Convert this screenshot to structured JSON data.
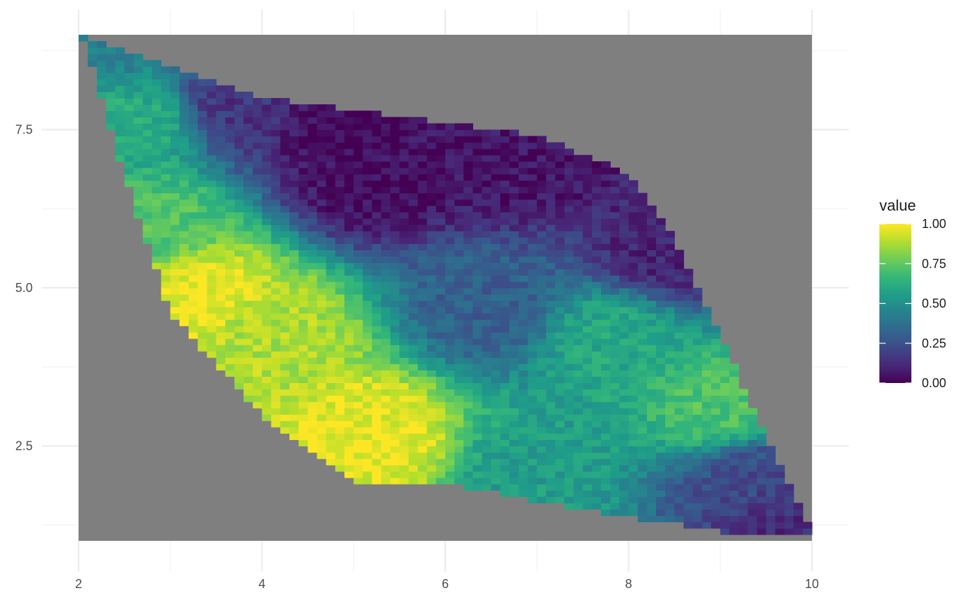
{
  "chart_data": {
    "type": "heatmap",
    "title": "",
    "xlabel": "",
    "ylabel": "",
    "xlim": [
      2,
      10
    ],
    "ylim": [
      1,
      9
    ],
    "x_ticks": [
      2,
      4,
      6,
      8,
      10
    ],
    "x_tick_labels": [
      "2",
      "4",
      "6",
      "8",
      "10"
    ],
    "y_ticks": [
      2.5,
      5.0,
      7.5
    ],
    "y_tick_labels": [
      "2.5",
      "5.0",
      "7.5"
    ],
    "grid": true,
    "panel_fill": "#7f7f7f",
    "colormap": "viridis",
    "legend": {
      "title": "value",
      "position": "right",
      "range": [
        0,
        1
      ],
      "breaks": [
        0,
        0.25,
        0.5,
        0.75,
        1
      ],
      "labels": [
        "0.00",
        "0.25",
        "0.50",
        "0.75",
        "1.00"
      ]
    },
    "region": {
      "description_points": [
        [
          2,
          9
        ],
        [
          4,
          8
        ],
        [
          7,
          7.4
        ],
        [
          8,
          6.8
        ],
        [
          8.5,
          5.8
        ],
        [
          9.2,
          3.6
        ],
        [
          10,
          1.1
        ],
        [
          9.2,
          1.1
        ],
        [
          7.5,
          1.5
        ],
        [
          6,
          1.9
        ],
        [
          5,
          1.9
        ],
        [
          4,
          3
        ],
        [
          3,
          4.6
        ],
        [
          2.5,
          6.8
        ],
        [
          2.1,
          8.7
        ]
      ]
    },
    "hotspots": [
      {
        "x": 3.3,
        "y": 4.9,
        "value": 0.98
      },
      {
        "x": 5.2,
        "y": 2.7,
        "value": 0.97
      },
      {
        "x": 4.1,
        "y": 4.3,
        "value": 0.88
      },
      {
        "x": 2.8,
        "y": 6.0,
        "value": 0.72
      },
      {
        "x": 2.6,
        "y": 7.6,
        "value": 0.62
      },
      {
        "x": 9.0,
        "y": 3.1,
        "value": 0.72
      },
      {
        "x": 7.8,
        "y": 4.2,
        "value": 0.6
      },
      {
        "x": 5.2,
        "y": 6.7,
        "value": 0.03
      },
      {
        "x": 4.8,
        "y": 7.7,
        "value": 0.02
      },
      {
        "x": 6.9,
        "y": 7.0,
        "value": 0.05
      },
      {
        "x": 3.8,
        "y": 7.9,
        "value": 0.15
      },
      {
        "x": 8.4,
        "y": 5.6,
        "value": 0.1
      },
      {
        "x": 9.8,
        "y": 1.4,
        "value": 0.12
      },
      {
        "x": 9.4,
        "y": 2.0,
        "value": 0.22
      },
      {
        "x": 6.5,
        "y": 4.7,
        "value": 0.3
      },
      {
        "x": 2.1,
        "y": 8.9,
        "value": 0.42
      },
      {
        "x": 7.0,
        "y": 2.1,
        "value": 0.55
      }
    ]
  }
}
